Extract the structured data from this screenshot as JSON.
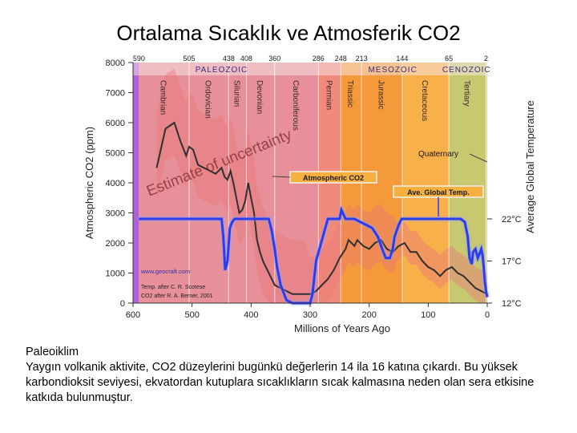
{
  "title": "Ortalama Sıcaklık ve Atmosferik CO2",
  "caption": {
    "heading": "Paleoiklim",
    "body": "Yaygın volkanik aktivite, CO2 düzeylerini bugünkü değerlerin 14 ila 16 katına çıkardı. Bu yüksek karbondioksit seviyesi, ekvatordan kutuplara sıcaklıkların sıcak kalmasına neden olan sera etkisine katkıda bulunmuştur."
  },
  "colors": {
    "paleozoic": "#e8909a",
    "permian": "#f08a7a",
    "mesozoic": "#f59a3a",
    "cretaceous": "#f8b04a",
    "cenozoic": "#c8c870",
    "uncertainty": "#e87878",
    "co2_line": "#303030",
    "temp_line": "#2a3cf0",
    "leftbar": "#b060d8"
  },
  "chart_data": {
    "type": "line",
    "xlabel": "Millions of Years Ago",
    "ylabel_left": "Atmospheric CO2 (ppm)",
    "ylabel_right": "Average Global Temperature",
    "xlim": [
      600,
      0
    ],
    "ylim": [
      0,
      8000
    ],
    "x_ticks": [
      "600",
      "500",
      "400",
      "300",
      "200",
      "100",
      "0"
    ],
    "x_tick_values": [
      600,
      500,
      400,
      300,
      200,
      100,
      0
    ],
    "y_ticks": [
      "0",
      "1000",
      "2000",
      "3000",
      "4000",
      "5000",
      "6000",
      "7000",
      "8000"
    ],
    "y_tick_values": [
      0,
      1000,
      2000,
      3000,
      4000,
      5000,
      6000,
      7000,
      8000
    ],
    "temp_ticks": [
      {
        "label": "22°C",
        "value": 2800
      },
      {
        "label": "17°C",
        "value": 1400
      },
      {
        "label": "12°C",
        "value": 0
      }
    ],
    "top_ages": [
      {
        "label": "590",
        "x": 590
      },
      {
        "label": "505",
        "x": 505
      },
      {
        "label": "438",
        "x": 438
      },
      {
        "label": "408",
        "x": 408
      },
      {
        "label": "360",
        "x": 360
      },
      {
        "label": "286",
        "x": 286
      },
      {
        "label": "248",
        "x": 248
      },
      {
        "label": "213",
        "x": 213
      },
      {
        "label": "144",
        "x": 144
      },
      {
        "label": "65",
        "x": 65
      },
      {
        "label": "2",
        "x": 2
      }
    ],
    "eras": [
      {
        "label": "PALEOZOIC",
        "x": 450
      },
      {
        "label": "MESOZOIC",
        "x": 160
      },
      {
        "label": "CENOZOIC",
        "x": 35
      }
    ],
    "periods": [
      {
        "label": "Cambrian",
        "from": 590,
        "to": 505,
        "color": "#e8909a"
      },
      {
        "label": "Ordovician",
        "from": 505,
        "to": 438,
        "color": "#e8909a"
      },
      {
        "label": "Silurian",
        "from": 438,
        "to": 408,
        "color": "#e8909a"
      },
      {
        "label": "Devonian",
        "from": 408,
        "to": 360,
        "color": "#e8909a"
      },
      {
        "label": "Carboniferous",
        "from": 360,
        "to": 286,
        "color": "#e8909a"
      },
      {
        "label": "Permian",
        "from": 286,
        "to": 248,
        "color": "#f08a7a"
      },
      {
        "label": "Triassic",
        "from": 248,
        "to": 213,
        "color": "#f59a3a"
      },
      {
        "label": "Jurassic",
        "from": 213,
        "to": 144,
        "color": "#f59a3a"
      },
      {
        "label": "Cretaceous",
        "from": 144,
        "to": 65,
        "color": "#f8b04a"
      },
      {
        "label": "Tertiary",
        "from": 65,
        "to": 2,
        "color": "#c8c870"
      }
    ],
    "annotations": [
      {
        "label": "Estimate of uncertainty"
      },
      {
        "label": "Atmospheric CO2"
      },
      {
        "label": "Ave. Global Temp."
      },
      {
        "label": "Quaternary"
      },
      {
        "label": "www.geocraft.com"
      },
      {
        "label": "Temp. after C. R. Scotese"
      },
      {
        "label": "CO2 after R. A. Berner, 2001"
      }
    ],
    "series": [
      {
        "name": "Atmospheric CO2",
        "x": [
          560,
          545,
          530,
          520,
          510,
          505,
          498,
          490,
          480,
          470,
          460,
          450,
          445,
          440,
          435,
          430,
          425,
          420,
          415,
          410,
          405,
          400,
          395,
          390,
          385,
          380,
          370,
          360,
          350,
          340,
          330,
          320,
          310,
          300,
          290,
          280,
          270,
          260,
          250,
          240,
          235,
          230,
          225,
          220,
          210,
          200,
          190,
          180,
          170,
          160,
          150,
          140,
          130,
          120,
          110,
          100,
          90,
          80,
          70,
          60,
          50,
          40,
          30,
          20,
          10,
          0
        ],
        "y": [
          4500,
          5800,
          6000,
          5400,
          4900,
          5200,
          5100,
          4600,
          4500,
          4400,
          4300,
          4500,
          4200,
          4100,
          4400,
          4000,
          3500,
          3000,
          3100,
          3400,
          4000,
          3500,
          3000,
          2100,
          1700,
          1400,
          1000,
          600,
          500,
          400,
          300,
          300,
          300,
          300,
          400,
          600,
          800,
          1100,
          1500,
          1800,
          2100,
          2000,
          1900,
          2100,
          1900,
          1800,
          2000,
          2100,
          1800,
          1700,
          1900,
          2000,
          1700,
          1700,
          1400,
          1200,
          1100,
          900,
          1100,
          1200,
          1000,
          900,
          700,
          500,
          400,
          300
        ]
      },
      {
        "name": "Ave. Global Temp.",
        "x": [
          590,
          570,
          550,
          530,
          510,
          500,
          490,
          470,
          460,
          450,
          447,
          444,
          440,
          436,
          432,
          428,
          420,
          400,
          380,
          370,
          365,
          360,
          356,
          350,
          340,
          330,
          320,
          310,
          305,
          300,
          296,
          290,
          270,
          255,
          250,
          247,
          240,
          225,
          215,
          205,
          195,
          185,
          178,
          172,
          165,
          160,
          157,
          150,
          145,
          140,
          135,
          125,
          115,
          100,
          80,
          66,
          55,
          45,
          38,
          33,
          30,
          26,
          24,
          20,
          16,
          12,
          10,
          8,
          6,
          4,
          2,
          0
        ],
        "y": [
          2800,
          2800,
          2800,
          2800,
          2800,
          2800,
          2800,
          2800,
          2800,
          2800,
          2200,
          1100,
          1400,
          2500,
          2700,
          2800,
          2800,
          2800,
          2800,
          2800,
          2400,
          1800,
          1200,
          600,
          100,
          0,
          0,
          0,
          0,
          0,
          300,
          1400,
          2800,
          2800,
          2800,
          3100,
          2800,
          2800,
          2700,
          2600,
          2500,
          2200,
          1800,
          1500,
          1500,
          1800,
          2200,
          2600,
          2800,
          2800,
          2800,
          2800,
          2800,
          2800,
          2800,
          2800,
          2800,
          2800,
          2700,
          2200,
          1500,
          1300,
          1700,
          1800,
          1500,
          1700,
          1800,
          1600,
          1200,
          700,
          400,
          200
        ]
      }
    ]
  }
}
